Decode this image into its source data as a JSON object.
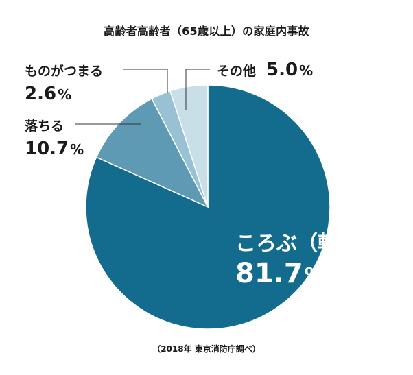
{
  "chart_data": {
    "type": "pie",
    "title": "高齢者高齢者（65歳以上）の家庭内事故",
    "source": "（2018年  東京消防庁調べ）",
    "start_angle_deg": 0,
    "direction": "clockwise",
    "slices": [
      {
        "label": "ころぶ（転倒）",
        "value": 81.7,
        "value_text": "81.7",
        "unit": "%",
        "color": "#136c8e"
      },
      {
        "label": "落ちる",
        "value": 10.7,
        "value_text": "10.7",
        "unit": "%",
        "color": "#5f9ab4"
      },
      {
        "label": "ものがつまる",
        "value": 2.6,
        "value_text": "2.6",
        "unit": "%",
        "color": "#98c1d3"
      },
      {
        "label": "その他",
        "value": 5.0,
        "value_text": "5.0",
        "unit": "%",
        "color": "#c8dfe8"
      }
    ]
  }
}
